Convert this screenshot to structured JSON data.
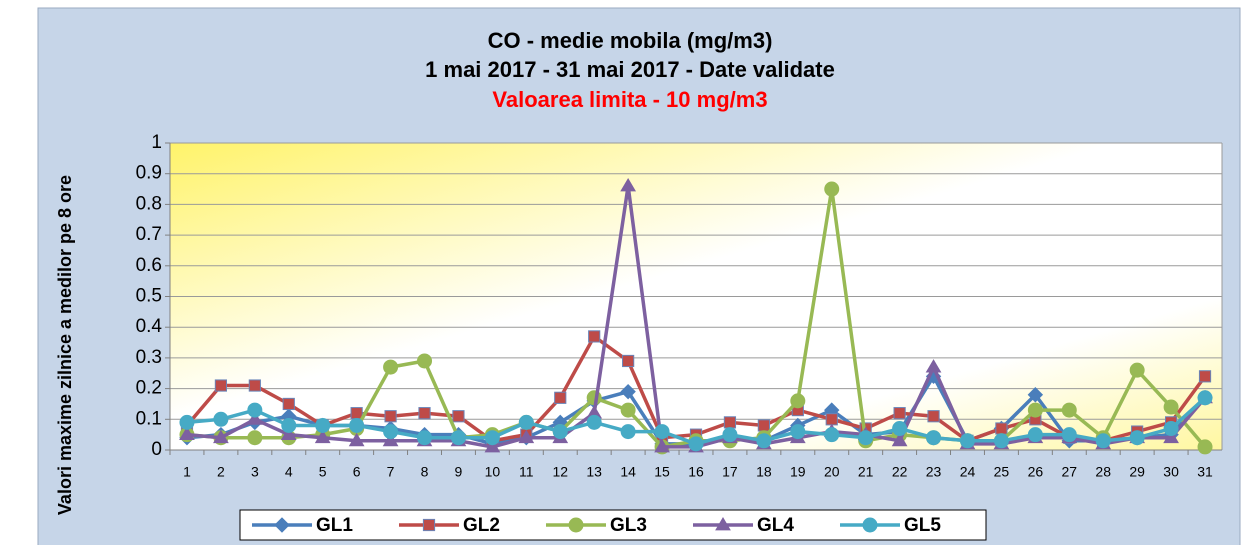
{
  "chart_data": {
    "type": "line",
    "title": "CO - medie mobila (mg/m3)",
    "subtitle": "1 mai 2017 - 31 mai 2017 - Date validate",
    "annotation": "Valoarea limita - 10 mg/m3",
    "y_label": "Valori maxime zilnice a medilor pe 8 ore",
    "categories": [
      "1",
      "2",
      "3",
      "4",
      "5",
      "6",
      "7",
      "8",
      "9",
      "10",
      "11",
      "12",
      "13",
      "14",
      "15",
      "16",
      "17",
      "18",
      "19",
      "20",
      "21",
      "22",
      "23",
      "24",
      "25",
      "26",
      "27",
      "28",
      "29",
      "30",
      "31"
    ],
    "ylim": [
      0,
      1
    ],
    "yticks": [
      0,
      0.1,
      0.2,
      0.3,
      0.4,
      0.5,
      0.6,
      0.7,
      0.8,
      0.9,
      1
    ],
    "grid": true,
    "legend": "bottom",
    "series": [
      {
        "name": "GL1",
        "color": "#4a7ebb",
        "marker": "diamond",
        "values": [
          0.04,
          0.05,
          0.09,
          0.11,
          0.08,
          0.08,
          0.07,
          0.05,
          0.05,
          0.02,
          0.04,
          0.09,
          0.16,
          0.19,
          0.02,
          0.02,
          0.04,
          0.03,
          0.08,
          0.13,
          0.05,
          0.06,
          0.24,
          0.03,
          0.07,
          0.18,
          0.03,
          0.03,
          0.04,
          0.05,
          0.17
        ]
      },
      {
        "name": "GL2",
        "color": "#be4b48",
        "marker": "square",
        "values": [
          0.08,
          0.21,
          0.21,
          0.15,
          0.08,
          0.12,
          0.11,
          0.12,
          0.11,
          0.03,
          0.05,
          0.17,
          0.37,
          0.29,
          0.04,
          0.05,
          0.09,
          0.08,
          0.13,
          0.1,
          0.07,
          0.12,
          0.11,
          0.03,
          0.07,
          0.1,
          0.04,
          0.03,
          0.06,
          0.09,
          0.24
        ]
      },
      {
        "name": "GL3",
        "color": "#98b954",
        "marker": "circle",
        "values": [
          0.05,
          0.04,
          0.04,
          0.04,
          0.05,
          0.07,
          0.27,
          0.29,
          0.04,
          0.05,
          0.09,
          0.06,
          0.17,
          0.13,
          0.01,
          0.03,
          0.03,
          0.04,
          0.16,
          0.85,
          0.03,
          0.05,
          0.04,
          0.03,
          0.03,
          0.13,
          0.13,
          0.04,
          0.26,
          0.14,
          0.01
        ]
      },
      {
        "name": "GL4",
        "color": "#7d60a0",
        "marker": "triangle",
        "values": [
          0.05,
          0.04,
          0.1,
          0.05,
          0.04,
          0.03,
          0.03,
          0.03,
          0.03,
          0.01,
          0.04,
          0.04,
          0.12,
          0.86,
          0.01,
          0.01,
          0.04,
          0.02,
          0.04,
          0.06,
          0.05,
          0.03,
          0.27,
          0.02,
          0.02,
          0.04,
          0.04,
          0.02,
          0.04,
          0.04,
          0.17
        ]
      },
      {
        "name": "GL5",
        "color": "#46aac5",
        "marker": "circle",
        "values": [
          0.09,
          0.1,
          0.13,
          0.08,
          0.08,
          0.08,
          0.06,
          0.04,
          0.04,
          0.04,
          0.09,
          0.06,
          0.09,
          0.06,
          0.06,
          0.02,
          0.05,
          0.03,
          0.06,
          0.05,
          0.04,
          0.07,
          0.04,
          0.03,
          0.03,
          0.05,
          0.05,
          0.03,
          0.04,
          0.07,
          0.17
        ]
      }
    ]
  }
}
